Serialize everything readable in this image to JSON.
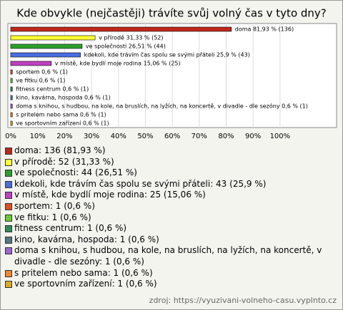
{
  "chart_data": {
    "type": "hbar",
    "title": "Kde obvykle (nejčastěji) trávíte svůj volný čas v tyto dny?",
    "categories": [
      "doma",
      "v přírodě",
      "ve společnosti",
      "kdekoli, kde trávím čas spolu se svými přáteli",
      "v místě, kde bydlí moje rodina",
      "sportem",
      "ve fitku",
      "fitness centrum",
      "kino, kavárna, hospoda",
      "doma s knihou, s hudbou, na kole, na bruslích, na lyžích, na koncertě, v divadle - dle sezóny",
      "s pritelem nebo sama",
      "ve sportovním zařízení"
    ],
    "values": [
      81.93,
      31.33,
      26.51,
      25.9,
      15.06,
      0.6,
      0.6,
      0.6,
      0.6,
      0.6,
      0.6,
      0.6
    ],
    "value_labels": [
      "doma 81,93 % (136)",
      "v přírodě 31,33 % (52)",
      "ve společnosti 26,51 % (44)",
      "kdekoli, kde trávím čas spolu se svými přáteli 25,9 % (43)",
      "v místě, kde bydlí moje rodina 15,06 % (25)",
      "sportem 0,6 % (1)",
      "ve fitku 0,6 % (1)",
      "fitness centrum 0,6 % (1)",
      "kino, kavárna, hospoda 0,6 % (1)",
      "doma s knihou, s hudbou, na kole, na bruslích, na lyžích, na koncertě, v divadle - dle sezóny 0,6 % (1)",
      "s pritelem nebo sama 0,6 % (1)",
      "ve sportovním zařízení 0,6 % (1)"
    ],
    "legend_labels": [
      "doma: 136 (81,93 %)",
      "v přírodě: 52 (31,33 %)",
      "ve společnosti: 44 (26,51 %)",
      "kdekoli, kde trávím čas spolu se svými přáteli: 43 (25,9 %)",
      "v místě, kde bydlí moje rodina: 25 (15,06 %)",
      "sportem: 1 (0,6 %)",
      "ve fitku: 1 (0,6 %)",
      "fitness centrum: 1 (0,6 %)",
      "kino, kavárna, hospoda: 1 (0,6 %)",
      "doma s knihou, s hudbou, na kole, na bruslích, na lyžích, na koncertě, v divadle - dle sezóny: 1 (0,6 %)",
      "s pritelem nebo sama: 1 (0,6 %)",
      "ve sportovním zařízení: 1 (0,6 %)"
    ],
    "colors": [
      "#c0281a",
      "#ffff33",
      "#2ca02c",
      "#4a6ee0",
      "#c040c0",
      "#e05020",
      "#66cc33",
      "#2e8b57",
      "#557788",
      "#9966cc",
      "#ee8833",
      "#ddaa22"
    ],
    "xlim": [
      0,
      121
    ],
    "xticks": [
      {
        "value": 0,
        "label": "0%"
      },
      {
        "value": 10,
        "label": "10%"
      },
      {
        "value": 20,
        "label": "20%"
      },
      {
        "value": 30,
        "label": "30%"
      },
      {
        "value": 40,
        "label": "40%"
      },
      {
        "value": 50,
        "label": "50%"
      },
      {
        "value": 60,
        "label": "60%"
      },
      {
        "value": 70,
        "label": "70%"
      },
      {
        "value": 80,
        "label": "80%"
      },
      {
        "value": 90,
        "label": "90%"
      },
      {
        "value": 100,
        "label": "100%"
      }
    ],
    "grid": true,
    "source": "zdroj: https://vyuzivani-volneho-casu.vyplnto.cz"
  }
}
